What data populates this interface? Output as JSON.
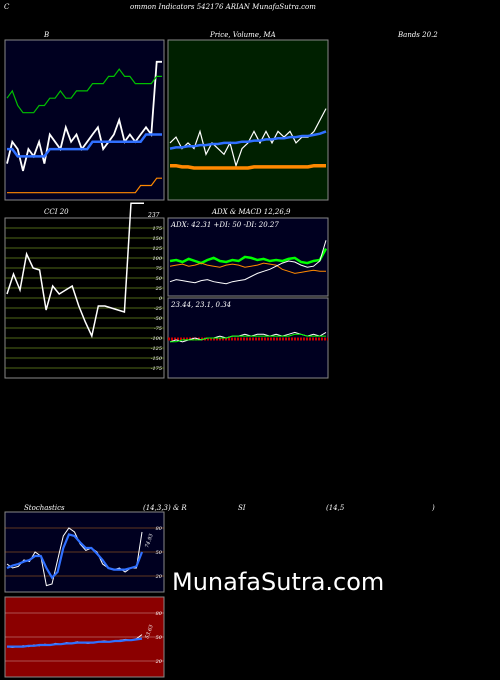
{
  "header": {
    "c": "C",
    "title": "ommon  Indicators 542176  ARIAN  MunafaSutra.com"
  },
  "labels": {
    "b": "B",
    "price_overlap": "Price,  Volume,  MA",
    "bands": "Bands 20.2",
    "cci": "CCI 20",
    "adx_macd": "ADX  & MACD 12,26,9",
    "adx_info": "ADX: 42.31  +DI: 50  -DI: 20.27",
    "macd_info": "23.44,  23.1,  0.34",
    "stoch": "Stochastics",
    "stoch_params": "(14,3,3) & R",
    "si": "SI",
    "rsi_params": "(14,5",
    "rsi_close": ")",
    "watermark": "MunafaSutra.com"
  },
  "colors": {
    "bands_bg": "#000020",
    "price_bg": "#002000",
    "cci_bg": "#000000",
    "rsi_bg": "#8b0000",
    "accent_green": "#00ff00",
    "accent_blue": "#3070ff",
    "accent_orange": "#ffa020"
  },
  "chart_data": [
    {
      "type": "line",
      "name_hint": "bollinger",
      "series": [
        {
          "color": "#ffffff",
          "values": [
            5,
            8,
            7,
            4,
            7,
            6,
            8,
            5,
            9,
            8,
            7,
            10,
            8,
            9,
            7,
            8,
            9,
            10,
            7,
            8,
            9,
            11,
            8,
            9,
            8,
            9,
            10,
            9,
            19,
            19
          ]
        },
        {
          "color": "#00c000",
          "values": [
            14,
            15,
            13,
            12,
            12,
            12,
            13,
            13,
            14,
            14,
            15,
            14,
            14,
            15,
            15,
            15,
            16,
            16,
            16,
            17,
            17,
            18,
            17,
            17,
            16,
            16,
            16,
            16,
            17,
            17
          ]
        },
        {
          "color": "#3070ff",
          "values": [
            7,
            7,
            6,
            6,
            6,
            6,
            6,
            6,
            7,
            7,
            7,
            7,
            7,
            7,
            7,
            7,
            8,
            8,
            8,
            8,
            8,
            8,
            8,
            8,
            8,
            8,
            9,
            9,
            9,
            9
          ]
        },
        {
          "color": "#ff8800",
          "values": [
            1,
            1,
            1,
            1,
            1,
            1,
            1,
            1,
            1,
            1,
            1,
            1,
            1,
            1,
            1,
            1,
            1,
            1,
            1,
            1,
            1,
            1,
            1,
            1,
            1,
            2,
            2,
            2,
            3,
            3
          ]
        }
      ]
    },
    {
      "type": "line",
      "name_hint": "price_ma",
      "series": [
        {
          "color": "#ffffff",
          "values": [
            5,
            5.5,
            4.5,
            5,
            4.5,
            6,
            4,
            5,
            4.5,
            4,
            5,
            3,
            4.5,
            5,
            6,
            5,
            6,
            5,
            6,
            5.5,
            6,
            5,
            5.5,
            5.5,
            6,
            7,
            8
          ]
        },
        {
          "color": "#3070ff",
          "values": [
            4.5,
            4.6,
            4.6,
            4.7,
            4.7,
            4.8,
            4.8,
            4.9,
            4.9,
            5,
            5,
            5,
            5.1,
            5.1,
            5.2,
            5.2,
            5.3,
            5.3,
            5.4,
            5.4,
            5.5,
            5.5,
            5.6,
            5.6,
            5.7,
            5.8,
            6
          ]
        },
        {
          "color": "#ff8800",
          "values": [
            3,
            3,
            2.9,
            2.9,
            2.8,
            2.8,
            2.8,
            2.8,
            2.8,
            2.8,
            2.8,
            2.8,
            2.8,
            2.8,
            2.9,
            2.9,
            2.9,
            2.9,
            2.9,
            2.9,
            2.9,
            2.9,
            2.9,
            2.9,
            3,
            3,
            3
          ]
        }
      ]
    },
    {
      "type": "line",
      "name_hint": "cci",
      "ticks": [
        "175",
        "150",
        "125",
        "100",
        "75",
        "50",
        "25",
        "0",
        "-25",
        "-50",
        "-75",
        "-100",
        "-125",
        "-150",
        "-175"
      ],
      "last_value_label": "237",
      "values": [
        10,
        60,
        20,
        110,
        75,
        70,
        -30,
        30,
        10,
        20,
        30,
        -20,
        -60,
        -95,
        -20,
        -20,
        -25,
        -30,
        -35,
        237,
        237,
        237
      ]
    },
    {
      "type": "line",
      "name_hint": "adx",
      "series": [
        {
          "color": "#00ff00",
          "values": [
            30,
            31,
            29,
            32,
            30,
            28,
            31,
            33,
            30,
            29,
            31,
            30,
            34,
            33,
            31,
            32,
            30,
            31,
            30,
            32,
            33,
            29,
            28,
            30,
            31,
            42
          ]
        },
        {
          "color": "#ff8800",
          "values": [
            25,
            26,
            27,
            25,
            26,
            28,
            26,
            25,
            24,
            26,
            27,
            26,
            24,
            25,
            26,
            28,
            27,
            26,
            22,
            20,
            18,
            19,
            20,
            21,
            20,
            20
          ]
        },
        {
          "color": "#ffffff",
          "values": [
            10,
            12,
            11,
            10,
            9,
            11,
            12,
            10,
            9,
            8,
            10,
            11,
            12,
            15,
            18,
            20,
            22,
            25,
            28,
            30,
            29,
            26,
            24,
            25,
            30,
            50
          ]
        }
      ]
    },
    {
      "type": "line",
      "name_hint": "macd",
      "series": [
        {
          "color": "#ffffff",
          "values": [
            20,
            21,
            20,
            21,
            22,
            21,
            22,
            22,
            23,
            22,
            23,
            23,
            24,
            23,
            24,
            24,
            23,
            24,
            23,
            24,
            25,
            24,
            23,
            24,
            23,
            25
          ]
        },
        {
          "color": "#00ff00",
          "values": [
            20,
            20,
            21,
            21,
            21,
            21,
            22,
            22,
            22,
            22,
            23,
            23,
            23,
            23,
            23,
            23,
            23,
            23,
            23,
            23,
            24,
            24,
            23,
            23,
            23,
            23
          ]
        }
      ]
    },
    {
      "type": "line",
      "name_hint": "stochastics",
      "ticks": [
        "80",
        "50",
        "20"
      ],
      "last_value_label": "74.93",
      "series": [
        {
          "color": "#ffffff",
          "values": [
            35,
            30,
            32,
            40,
            38,
            50,
            45,
            8,
            10,
            40,
            70,
            80,
            75,
            60,
            52,
            55,
            50,
            35,
            30,
            28,
            30,
            25,
            30,
            30,
            75
          ]
        },
        {
          "color": "#3070ff",
          "values": [
            30,
            33,
            35,
            38,
            40,
            45,
            45,
            30,
            18,
            25,
            55,
            72,
            70,
            62,
            55,
            55,
            48,
            40,
            30,
            28,
            28,
            28,
            30,
            32,
            50
          ]
        }
      ]
    },
    {
      "type": "line",
      "name_hint": "rsi",
      "ticks": [
        "80",
        "50",
        "20"
      ],
      "last_value_label": "53.63",
      "series": [
        {
          "color": "#ffffff",
          "values": [
            38,
            37,
            38,
            39,
            38,
            40,
            39,
            41,
            40,
            42,
            41,
            43,
            42,
            44,
            43,
            42,
            43,
            44,
            45,
            44,
            45,
            46,
            47,
            46,
            48,
            53
          ]
        },
        {
          "color": "#3070ff",
          "values": [
            38,
            38,
            38,
            38,
            39,
            39,
            40,
            40,
            40,
            41,
            41,
            42,
            42,
            43,
            43,
            43,
            43,
            44,
            44,
            44,
            45,
            45,
            46,
            46,
            47,
            48
          ]
        }
      ]
    }
  ]
}
